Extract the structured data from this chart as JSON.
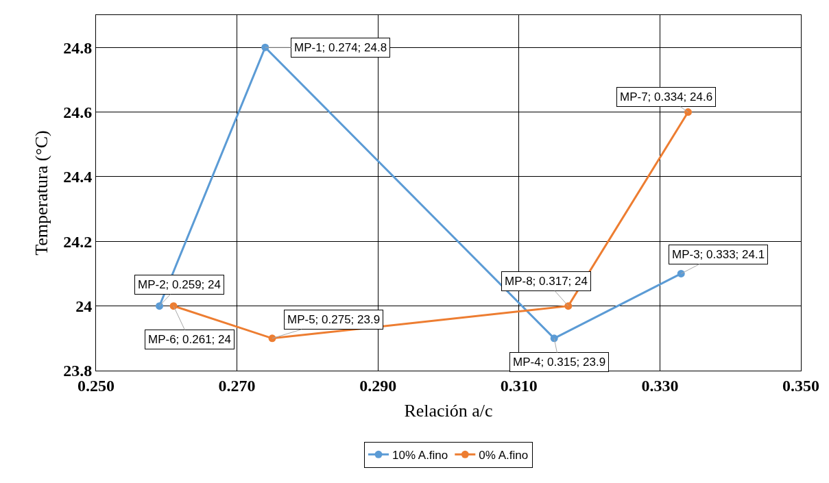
{
  "chart_data": {
    "type": "line",
    "xlabel": "Relación a/c",
    "ylabel": "Temperatura (°C)",
    "series": [
      {
        "name": "10% A.fino",
        "color": "#5b9bd5",
        "x": [
          0.259,
          0.274,
          0.315,
          0.333
        ],
        "values": [
          24,
          24.8,
          23.9,
          24.1
        ],
        "value_labels": [
          "MP-2; 0.259; 24",
          "MP-1; 0.274; 24.8",
          "MP-4; 0.315; 23.9",
          "MP-3; 0.333; 24.1"
        ]
      },
      {
        "name": "0% A.fino",
        "color": "#ed7d31",
        "x": [
          0.261,
          0.275,
          0.317,
          0.334
        ],
        "values": [
          24,
          23.9,
          24,
          24.6
        ],
        "value_labels": [
          "MP-6; 0.261; 24",
          "MP-5; 0.275; 23.9",
          "MP-8; 0.317; 24",
          "MP-7; 0.334; 24.6"
        ]
      }
    ],
    "xlim": [
      0.25,
      0.35
    ],
    "xticks": [
      {
        "value": 0.25,
        "label": "0.250"
      },
      {
        "value": 0.27,
        "label": "0.270"
      },
      {
        "value": 0.29,
        "label": "0.290"
      },
      {
        "value": 0.31,
        "label": "0.310"
      },
      {
        "value": 0.33,
        "label": "0.330"
      },
      {
        "value": 0.35,
        "label": "0.350"
      }
    ],
    "ylim": [
      23.8,
      24.9
    ],
    "yticks": [
      23.8,
      24,
      24.2,
      24.4,
      24.6,
      24.8
    ],
    "grid": true,
    "legend": "bottom",
    "marker": "circle",
    "line_style": "solid"
  }
}
